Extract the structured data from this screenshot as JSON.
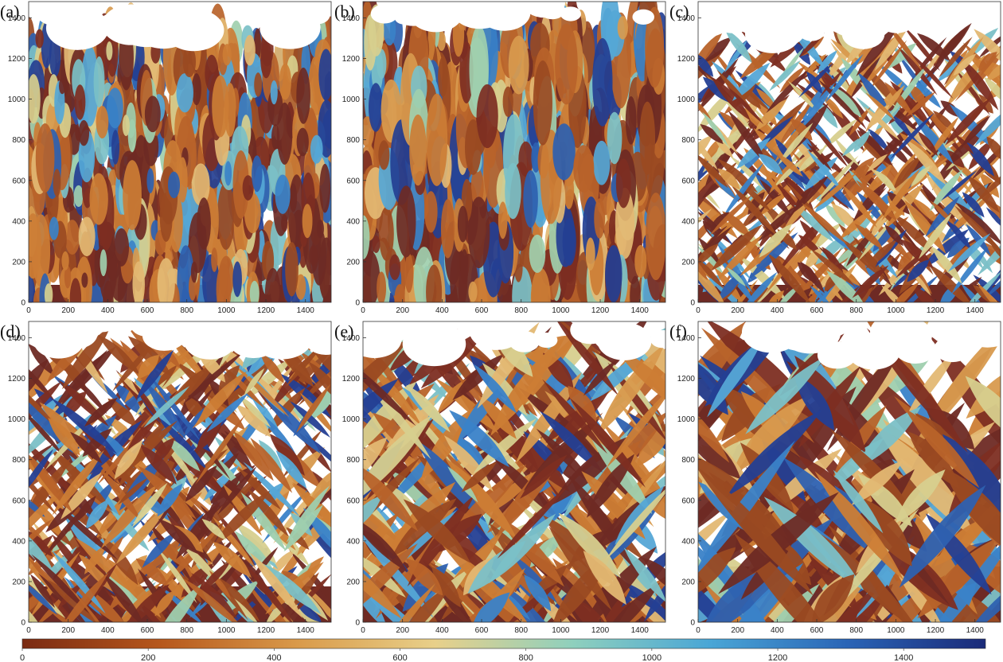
{
  "panels": [
    {
      "label": "(a)",
      "style": "dense-trees"
    },
    {
      "label": "(b)",
      "style": "columns"
    },
    {
      "label": "(c)",
      "style": "diagonal-fine"
    },
    {
      "label": "(d)",
      "style": "diagonal-medium"
    },
    {
      "label": "(e)",
      "style": "diagonal-coarse"
    },
    {
      "label": "(f)",
      "style": "diagonal-wide"
    }
  ],
  "x_ticks": [
    "0",
    "200",
    "400",
    "600",
    "800",
    "1000",
    "1200",
    "1400"
  ],
  "y_ticks": [
    "0",
    "200",
    "400",
    "600",
    "800",
    "1000",
    "1200",
    "1400"
  ],
  "axis_range": {
    "x": [
      0,
      1530
    ],
    "y": [
      0,
      1480
    ]
  },
  "colorbar": {
    "ticks": [
      "0",
      "200",
      "400",
      "600",
      "800",
      "1000",
      "1200",
      "1400"
    ],
    "range": [
      0,
      1530
    ],
    "colors": [
      "#7a2a12",
      "#b6571c",
      "#d99a4a",
      "#e8d08a",
      "#8fd0bd",
      "#4aa6d6",
      "#2a64b6",
      "#1a2a78"
    ]
  },
  "palette": [
    "#6e2a24",
    "#7d2e22",
    "#9a4a22",
    "#b8632a",
    "#cc7d35",
    "#d89a4e",
    "#e3b873",
    "#d7cf8e",
    "#9fcfae",
    "#7bc0c7",
    "#55a7d6",
    "#3a82c8",
    "#2e61b0",
    "#243f93"
  ]
}
